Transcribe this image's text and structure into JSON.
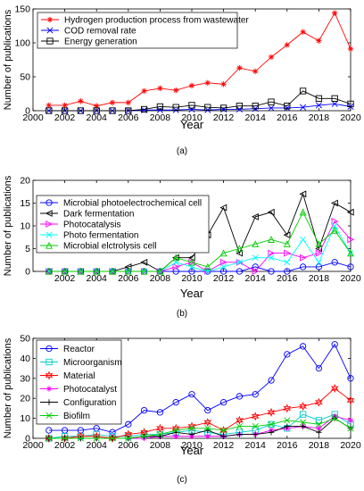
{
  "chart_data": [
    {
      "type": "line",
      "caption": "(a)",
      "xlabel": "Year",
      "ylabel": "Number of publications",
      "xlim": [
        2000,
        2020
      ],
      "ylim": [
        0,
        150
      ],
      "xticks": [
        2000,
        2002,
        2004,
        2006,
        2008,
        2010,
        2012,
        2014,
        2016,
        2018,
        2020
      ],
      "yticks": [
        0,
        50,
        100,
        150
      ],
      "legend_position": "top-left",
      "grid": false,
      "x": [
        2001,
        2002,
        2003,
        2004,
        2005,
        2006,
        2007,
        2008,
        2009,
        2010,
        2011,
        2012,
        2013,
        2014,
        2015,
        2016,
        2017,
        2018,
        2019,
        2020
      ],
      "series": [
        {
          "name": "Hydrogen production process from wastewater",
          "color": "#ff0000",
          "marker": "asterisk",
          "values": [
            8,
            8,
            14,
            7,
            12,
            12,
            29,
            33,
            30,
            37,
            41,
            39,
            63,
            58,
            79,
            97,
            116,
            103,
            144,
            91
          ]
        },
        {
          "name": "COD removal rate",
          "color": "#0000ff",
          "marker": "x",
          "values": [
            0,
            0,
            0,
            0,
            0,
            0,
            1,
            1,
            1,
            2,
            1,
            2,
            2,
            3,
            4,
            4,
            5,
            8,
            10,
            6
          ]
        },
        {
          "name": "Energy generation",
          "color": "#000000",
          "marker": "square",
          "values": [
            0,
            0,
            0,
            0,
            0,
            0,
            2,
            6,
            5,
            8,
            5,
            4,
            7,
            7,
            13,
            7,
            29,
            18,
            18,
            10
          ]
        }
      ]
    },
    {
      "type": "line",
      "caption": "(b)",
      "xlabel": "Year",
      "ylabel": "Number of publications",
      "xlim": [
        2000,
        2020
      ],
      "ylim": [
        0,
        20
      ],
      "xticks": [
        2002,
        2004,
        2006,
        2008,
        2010,
        2012,
        2014,
        2016,
        2018,
        2020
      ],
      "yticks": [
        0,
        5,
        10,
        15,
        20
      ],
      "legend_position": "top-left",
      "grid": false,
      "x": [
        2001,
        2002,
        2003,
        2004,
        2005,
        2006,
        2007,
        2008,
        2009,
        2010,
        2011,
        2012,
        2013,
        2014,
        2015,
        2016,
        2017,
        2018,
        2019,
        2020
      ],
      "series": [
        {
          "name": "Microbial photoelectrochemical cell",
          "color": "#0000ff",
          "marker": "circle",
          "values": [
            0,
            0,
            0,
            0,
            0,
            0,
            0,
            0,
            0,
            0,
            0,
            0,
            0,
            1,
            0,
            0,
            1,
            1,
            2,
            1
          ]
        },
        {
          "name": "Dark fermentation",
          "color": "#000000",
          "marker": "triangle-left",
          "values": [
            0,
            0,
            0,
            0,
            0,
            1,
            2,
            0,
            3,
            3,
            8,
            14,
            4,
            12,
            13,
            8,
            17,
            5,
            15,
            13
          ]
        },
        {
          "name": "Photocatalysis",
          "color": "#ff00ff",
          "marker": "triangle-right",
          "values": [
            0,
            0,
            0,
            0,
            0,
            0,
            0,
            0,
            1,
            2,
            0,
            2,
            2,
            0,
            4,
            4,
            3,
            4,
            11,
            7
          ]
        },
        {
          "name": "Photo fermentation",
          "color": "#00ffff",
          "marker": "x",
          "values": [
            0,
            0,
            0,
            0,
            0,
            0,
            0,
            0,
            2,
            1,
            0,
            1,
            2,
            3,
            3,
            2,
            7,
            2,
            10,
            4
          ]
        },
        {
          "name": "Microbial elctrolysis cell",
          "color": "#00cc00",
          "marker": "triangle-up",
          "values": [
            0,
            0,
            0,
            0,
            0,
            0,
            0,
            0,
            3,
            2,
            1,
            4,
            5,
            6,
            7,
            6,
            13,
            6,
            9,
            4
          ]
        }
      ]
    },
    {
      "type": "line",
      "caption": "(c)",
      "xlabel": "Year",
      "ylabel": "Number of publications",
      "xlim": [
        2000,
        2020
      ],
      "ylim": [
        0,
        50
      ],
      "xticks": [
        2000,
        2002,
        2004,
        2006,
        2008,
        2010,
        2012,
        2014,
        2016,
        2018,
        2020
      ],
      "yticks": [
        0,
        10,
        20,
        30,
        40,
        50
      ],
      "legend_position": "top-left",
      "grid": false,
      "x": [
        2001,
        2002,
        2003,
        2004,
        2005,
        2006,
        2007,
        2008,
        2009,
        2010,
        2011,
        2012,
        2013,
        2014,
        2015,
        2016,
        2017,
        2018,
        2019,
        2020
      ],
      "series": [
        {
          "name": "Reactor",
          "color": "#0000ff",
          "marker": "circle",
          "values": [
            4,
            4,
            4,
            5,
            3,
            7,
            14,
            13,
            18,
            22,
            14,
            18,
            21,
            22,
            29,
            42,
            46,
            35,
            47,
            30
          ]
        },
        {
          "name": "Microorganism",
          "color": "#00cccc",
          "marker": "square",
          "values": [
            0,
            1,
            1,
            2,
            1,
            1,
            2,
            2,
            3,
            4,
            3,
            2,
            3,
            4,
            7,
            5,
            12,
            9,
            12,
            7
          ]
        },
        {
          "name": "Material",
          "color": "#ff0000",
          "marker": "hexagram",
          "values": [
            0,
            0,
            1,
            1,
            0,
            2,
            3,
            5,
            5,
            6,
            8,
            4,
            9,
            11,
            13,
            15,
            16,
            18,
            25,
            19
          ]
        },
        {
          "name": "Photocatalyst",
          "color": "#ff00ff",
          "marker": "asterisk",
          "values": [
            0,
            0,
            0,
            0,
            0,
            0,
            0,
            1,
            1,
            1,
            1,
            1,
            2,
            2,
            4,
            5,
            6,
            5,
            11,
            9
          ]
        },
        {
          "name": "Configuration",
          "color": "#000000",
          "marker": "plus",
          "values": [
            0,
            0,
            0,
            0,
            0,
            0,
            1,
            1,
            3,
            2,
            4,
            1,
            2,
            2,
            3,
            6,
            6,
            3,
            10,
            5
          ]
        },
        {
          "name": "Biofilm",
          "color": "#00cc00",
          "marker": "x",
          "values": [
            0,
            0,
            0,
            0,
            0,
            0,
            1,
            2,
            4,
            5,
            5,
            4,
            6,
            6,
            7,
            9,
            8,
            7,
            10,
            5
          ]
        }
      ]
    }
  ]
}
